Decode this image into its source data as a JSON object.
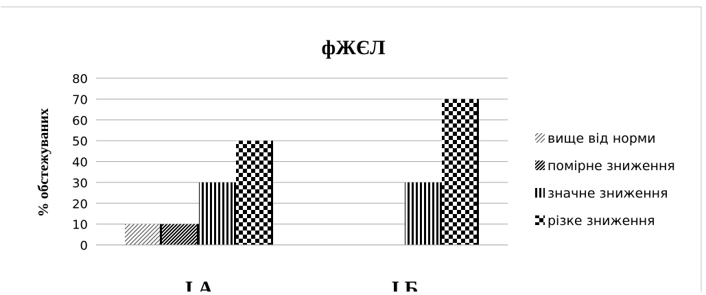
{
  "chart_data": {
    "type": "bar",
    "title": "фЖЄЛ",
    "ylabel": "% обстежуваних",
    "xlabel": "",
    "ylim": [
      0,
      80
    ],
    "yticks": [
      0,
      10,
      20,
      30,
      40,
      50,
      60,
      70,
      80
    ],
    "grid": true,
    "legend_position": "right",
    "categories": [
      "І А",
      "І Б"
    ],
    "series": [
      {
        "name": "вище від норми",
        "values": [
          10,
          0
        ],
        "pattern": "light-diagonal"
      },
      {
        "name": "помірне зниження",
        "values": [
          10,
          0
        ],
        "pattern": "dark-diagonal"
      },
      {
        "name": "значне зниження",
        "values": [
          30,
          30
        ],
        "pattern": "vertical-stripes"
      },
      {
        "name": "різке зниження",
        "values": [
          50,
          70
        ],
        "pattern": "checkerboard"
      }
    ]
  }
}
